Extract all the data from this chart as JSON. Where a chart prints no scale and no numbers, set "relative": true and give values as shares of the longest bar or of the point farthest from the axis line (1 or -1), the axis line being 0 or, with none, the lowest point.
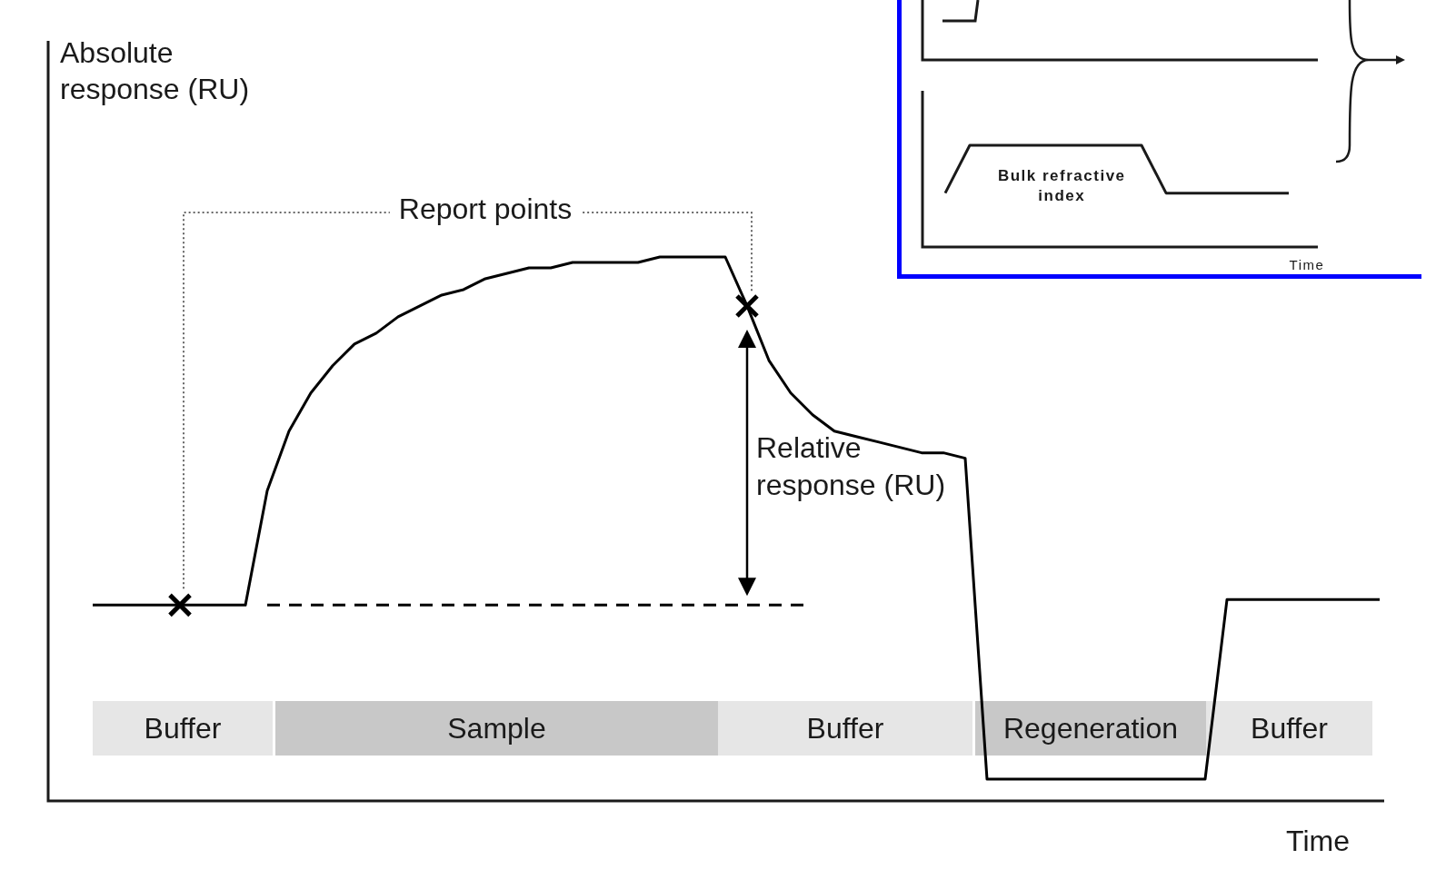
{
  "chart_data": [
    {
      "type": "line",
      "relative": true,
      "xlabel": "Time",
      "ylabel": "Absolute response (RU)",
      "categories": [
        null,
        null,
        null,
        null,
        null,
        null,
        null,
        null,
        null,
        null,
        null,
        null,
        null,
        null,
        null,
        null,
        null,
        null,
        null,
        null,
        null,
        null,
        null,
        null,
        null,
        null,
        null,
        null,
        null,
        null,
        null,
        null,
        null,
        null,
        null,
        null,
        null,
        null,
        null,
        null,
        null,
        null,
        null,
        null,
        null,
        null,
        null,
        null,
        null,
        null,
        null,
        null,
        null,
        null,
        null,
        null,
        null,
        null,
        null,
        null
      ],
      "series": [
        {
          "color": "#000000",
          "values": [
            0.36,
            0.36,
            0.36,
            0.36,
            0.36,
            0.36,
            0.36,
            0.36,
            0.57,
            0.68,
            0.75,
            0.8,
            0.84,
            0.86,
            0.89,
            0.91,
            0.93,
            0.94,
            0.96,
            0.97,
            0.98,
            0.98,
            0.99,
            0.99,
            0.99,
            0.99,
            1,
            1,
            1,
            1,
            0.91,
            0.81,
            0.75,
            0.71,
            0.68,
            0.67,
            0.66,
            0.65,
            0.64,
            0.64,
            0.63,
            0.04,
            0.04,
            0.04,
            0.04,
            0.04,
            0.04,
            0.04,
            0.04,
            0.04,
            0.04,
            0.04,
            0.37,
            0.37,
            0.37,
            0.37,
            0.37,
            0.37,
            0.37,
            0.37
          ]
        }
      ],
      "ref_lines": [
        {
          "axis": "y",
          "value": 0.36,
          "line_style": "dashed",
          "color": "#000000"
        }
      ],
      "annotations": [
        "Report points",
        "Relative response (RU)",
        "Buffer",
        "Sample",
        "Buffer",
        "Regeneration",
        "Buffer"
      ]
    },
    {
      "type": "line",
      "relative": true,
      "xlabel": "Time",
      "categories": [
        null,
        null,
        null,
        null,
        null,
        null,
        null,
        null,
        null,
        null,
        null,
        null,
        null,
        null,
        null
      ],
      "series": [
        {
          "color": "#1a1a1a",
          "values": [
            0.53,
            1,
            1,
            1,
            1,
            1,
            1,
            1,
            1,
            0.53,
            0.53,
            0.53,
            0.53,
            0.53,
            0.53
          ]
        }
      ],
      "annotations": [
        "Bulk refractive index"
      ]
    }
  ]
}
